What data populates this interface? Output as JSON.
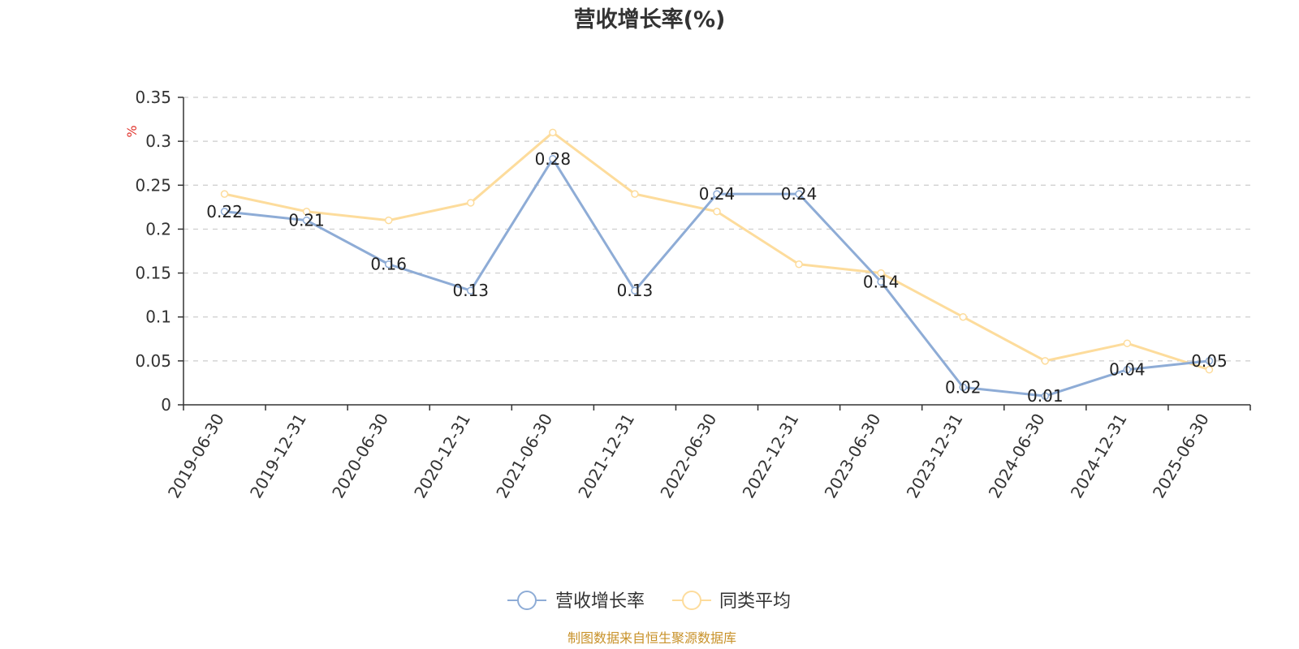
{
  "chart_data": {
    "type": "line",
    "title": "营收增长率(%)",
    "ylabel": "%",
    "xlabel": "",
    "ylim": [
      0,
      0.35
    ],
    "yticks": [
      "0",
      "0.05",
      "0.1",
      "0.15",
      "0.2",
      "0.25",
      "0.3",
      "0.35"
    ],
    "ytick_values": [
      0,
      0.05,
      0.1,
      0.15,
      0.2,
      0.25,
      0.3,
      0.35
    ],
    "grid": true,
    "legend_position": "bottom",
    "categories": [
      "2019-06-30",
      "2019-12-31",
      "2020-06-30",
      "2020-12-31",
      "2021-06-30",
      "2021-12-31",
      "2022-06-30",
      "2022-12-31",
      "2023-06-30",
      "2023-12-31",
      "2024-06-30",
      "2024-12-31",
      "2025-06-30"
    ],
    "series": [
      {
        "name": "营收增长率",
        "color": "#8eacd6",
        "values": [
          0.22,
          0.21,
          0.16,
          0.13,
          0.28,
          0.13,
          0.24,
          0.24,
          0.14,
          0.02,
          0.01,
          0.04,
          0.05
        ],
        "labels": [
          "0.22",
          "0.21",
          "0.16",
          "0.13",
          "0.28",
          "0.13",
          "0.24",
          "0.24",
          "0.14",
          "0.02",
          "0.01",
          "0.04",
          "0.05"
        ]
      },
      {
        "name": "同类平均",
        "color": "#fddc9c",
        "values": [
          0.24,
          0.22,
          0.21,
          0.23,
          0.31,
          0.24,
          0.22,
          0.16,
          0.15,
          0.1,
          0.05,
          0.07,
          0.04
        ]
      }
    ]
  },
  "footer": {
    "source_text": "制图数据来自恒生聚源数据库"
  },
  "colors": {
    "unit_label": "#e0322b",
    "source_text": "#c8922a",
    "grid": "#cccccc",
    "axis": "#333333"
  }
}
